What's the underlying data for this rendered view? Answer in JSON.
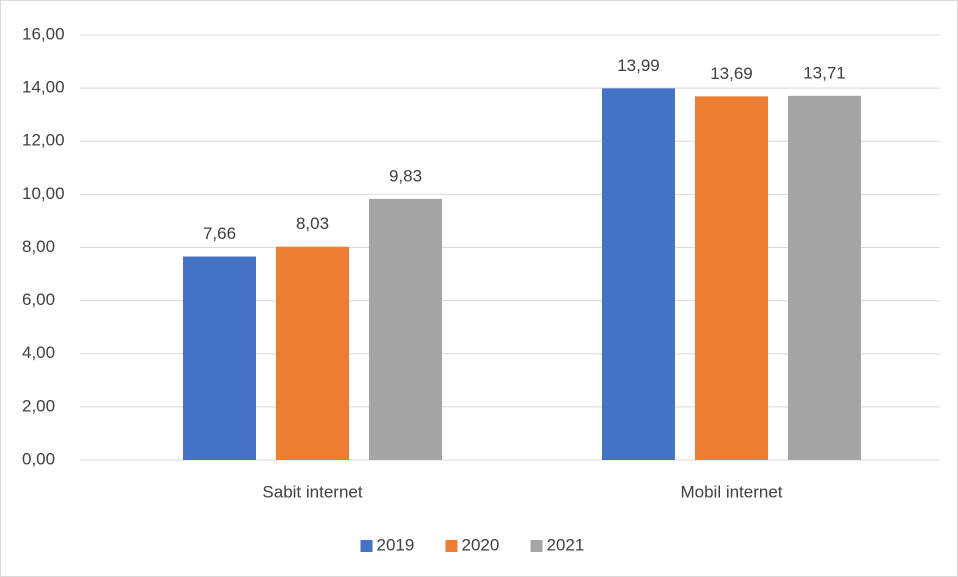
{
  "chart_data": {
    "type": "bar",
    "categories": [
      "Sabit internet",
      "Mobil internet"
    ],
    "series": [
      {
        "name": "2019",
        "color": "#4472c4",
        "values": [
          7.66,
          13.99
        ],
        "value_labels": [
          "7,66",
          "13,99"
        ]
      },
      {
        "name": "2020",
        "color": "#ed7d31",
        "values": [
          8.03,
          13.69
        ],
        "value_labels": [
          "8,03",
          "13,69"
        ]
      },
      {
        "name": "2021",
        "color": "#a5a5a5",
        "values": [
          9.83,
          13.71
        ],
        "value_labels": [
          "9,83",
          "13,71"
        ]
      }
    ],
    "ylim": [
      0,
      16
    ],
    "yticks": [
      {
        "value": 0,
        "label": "0,00"
      },
      {
        "value": 2,
        "label": "2,00"
      },
      {
        "value": 4,
        "label": "4,00"
      },
      {
        "value": 6,
        "label": "6,00"
      },
      {
        "value": 8,
        "label": "8,00"
      },
      {
        "value": 10,
        "label": "10,00"
      },
      {
        "value": 12,
        "label": "12,00"
      },
      {
        "value": 14,
        "label": "14,00"
      },
      {
        "value": 16,
        "label": "16,00"
      }
    ],
    "grid": true,
    "legend": "bottom"
  }
}
